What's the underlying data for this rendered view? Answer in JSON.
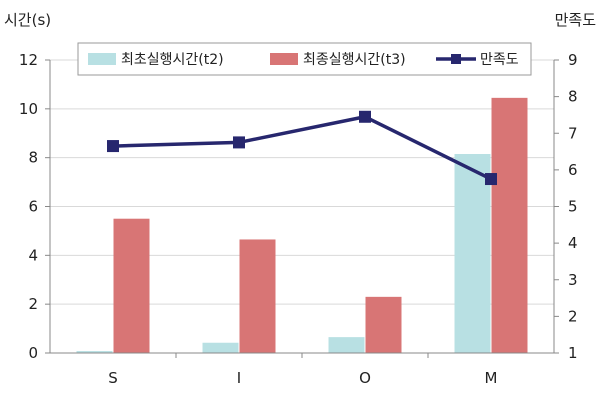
{
  "chart_data": {
    "type": "bar+line",
    "categories": [
      "S",
      "I",
      "O",
      "M"
    ],
    "y_left": {
      "label": "시간(s)",
      "min": 0,
      "max": 12,
      "ticks": [
        0,
        2,
        4,
        6,
        8,
        10,
        12
      ]
    },
    "y_right": {
      "label": "만족도",
      "min": 1,
      "max": 9,
      "ticks": [
        1,
        2,
        3,
        4,
        5,
        6,
        7,
        8,
        9
      ]
    },
    "series": [
      {
        "name": "최초실행시간(t2)",
        "kind": "bar",
        "axis": "left",
        "color": "#b8e0e3",
        "values": [
          0.08,
          0.42,
          0.65,
          8.15
        ]
      },
      {
        "name": "최종실행시간(t3)",
        "kind": "bar",
        "axis": "left",
        "color": "#d87575",
        "values": [
          5.5,
          4.65,
          2.3,
          10.45
        ]
      },
      {
        "name": "만족도",
        "kind": "line",
        "axis": "right",
        "color": "#27276e",
        "values": [
          6.65,
          6.75,
          7.45,
          5.75
        ]
      }
    ],
    "grid": "horizontal",
    "legend_position": "top"
  }
}
